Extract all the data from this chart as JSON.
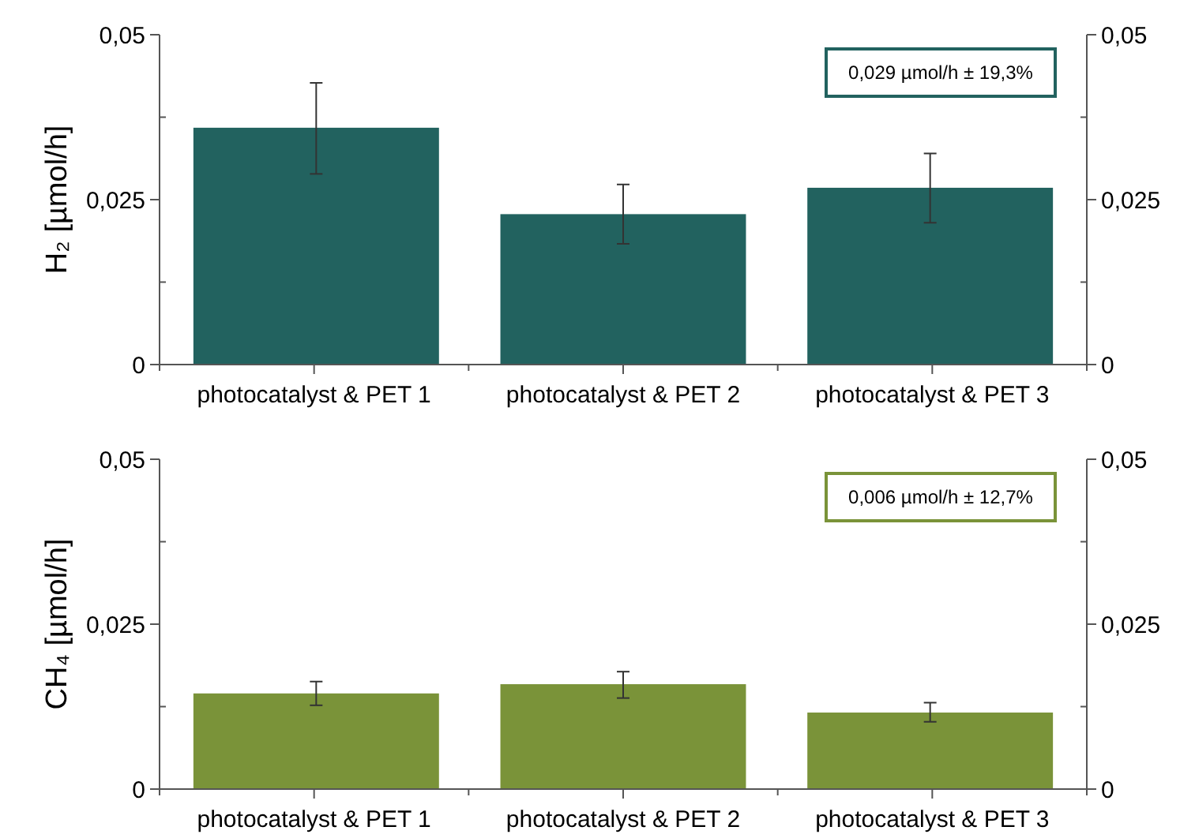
{
  "chart_data": [
    {
      "type": "bar",
      "ylabel": "H₂ [µmol/h]",
      "categories": [
        "photocatalyst & PET 1",
        "photocatalyst & PET 2",
        "photocatalyst & PET 3"
      ],
      "values": [
        0.0359,
        0.0228,
        0.0268
      ],
      "errors": [
        [
          0.0289,
          0.0427
        ],
        [
          0.0183,
          0.0273
        ],
        [
          0.0215,
          0.032
        ]
      ],
      "color": "#22625f",
      "ylim": [
        0,
        0.05
      ],
      "yticks": [
        0,
        {
          "value": 0.0125,
          "label": null
        },
        {
          "value": 0.025,
          "label": "0,025"
        },
        {
          "value": 0.0375,
          "label": null
        },
        {
          "value": 0.05,
          "label": "0,05"
        }
      ],
      "y2lim": [
        0,
        0.05
      ],
      "y2ticks": [
        0,
        {
          "value": 0.0125,
          "label": null
        },
        {
          "value": 0.025,
          "label": "0,025"
        },
        {
          "value": 0.0375,
          "label": null
        },
        {
          "value": 0.05,
          "label": "0,05"
        }
      ],
      "annotations": [
        "0,029 µmol/h ± 19,3%"
      ]
    },
    {
      "type": "bar",
      "ylabel": "CH₄ [µmol/h]",
      "categories": [
        "photocatalyst & PET 1",
        "photocatalyst & PET 2",
        "photocatalyst & PET 3"
      ],
      "values": [
        0.0145,
        0.0159,
        0.0116
      ],
      "errors": [
        [
          0.0127,
          0.0163
        ],
        [
          0.0138,
          0.0178
        ],
        [
          0.0102,
          0.0131
        ]
      ],
      "color": "#7a9339",
      "ylim": [
        0,
        0.05
      ],
      "yticks": [
        0,
        {
          "value": 0.0125,
          "label": null
        },
        {
          "value": 0.025,
          "label": "0,025"
        },
        {
          "value": 0.0375,
          "label": null
        },
        {
          "value": 0.05,
          "label": "0,05"
        }
      ],
      "y2lim": [
        0,
        0.05
      ],
      "y2ticks": [
        0,
        {
          "value": 0.0125,
          "label": null
        },
        {
          "value": 0.025,
          "label": "0,025"
        },
        {
          "value": 0.0375,
          "label": null
        },
        {
          "value": 0.05,
          "label": "0,05"
        }
      ],
      "annotations": [
        "0,006 µmol/h ± 12,7%"
      ]
    }
  ]
}
